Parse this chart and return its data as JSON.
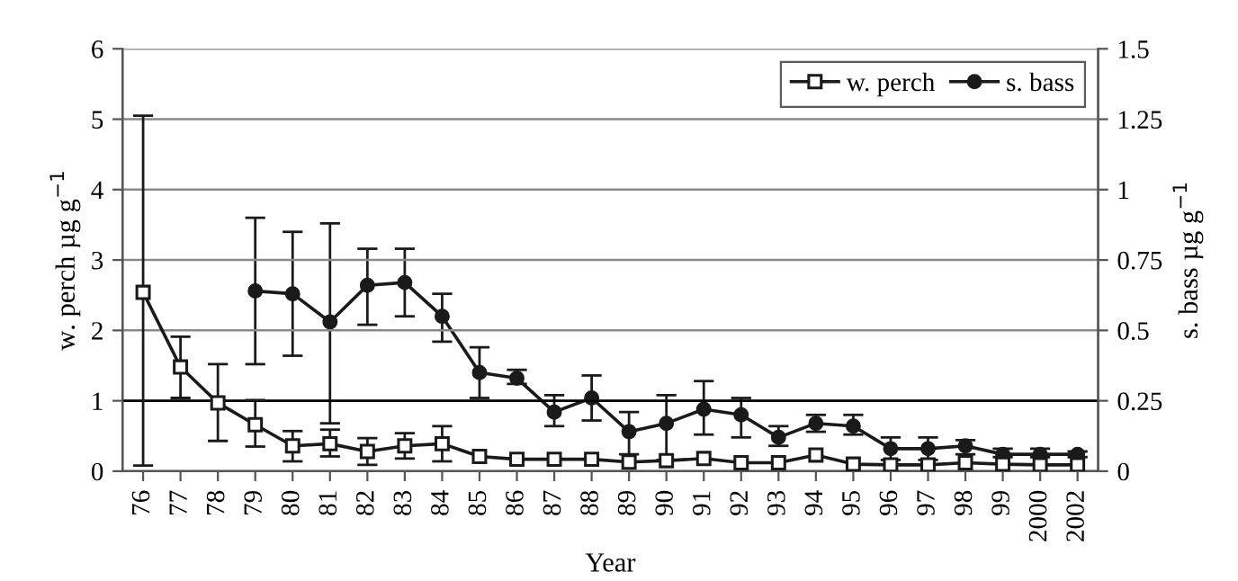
{
  "chart_data": {
    "type": "line",
    "xlabel": "Year",
    "ylabel": "w. perch µg g$^{−1}$",
    "y2label": "s. bass µg g$^{−1}$",
    "categories": [
      "76",
      "77",
      "78",
      "79",
      "80",
      "81",
      "82",
      "83",
      "84",
      "85",
      "86",
      "87",
      "88",
      "89",
      "90",
      "91",
      "92",
      "93",
      "94",
      "95",
      "96",
      "97",
      "98",
      "99",
      "2000",
      "2002"
    ],
    "series": [
      {
        "name": "w. perch",
        "color": "#1a1a1a",
        "marker": "square",
        "values": [
          2.54,
          1.48,
          0.97,
          0.66,
          0.36,
          0.39,
          0.28,
          0.36,
          0.39,
          0.21,
          0.17,
          0.17,
          0.17,
          0.13,
          0.15,
          0.18,
          0.12,
          0.12,
          0.23,
          0.1,
          0.09,
          0.09,
          0.12,
          0.1,
          0.09,
          0.09
        ],
        "errors": [
          [
            0.08,
            5.05
          ],
          [
            1.04,
            1.91
          ],
          [
            0.43,
            1.52
          ],
          [
            0.35,
            1.01
          ],
          [
            0.14,
            0.57
          ],
          [
            0.21,
            0.59
          ],
          [
            0.09,
            0.47
          ],
          [
            0.18,
            0.54
          ],
          [
            0.14,
            0.64
          ],
          null,
          null,
          null,
          null,
          null,
          null,
          null,
          null,
          null,
          null,
          null,
          null,
          null,
          null,
          null,
          null,
          null
        ]
      },
      {
        "name": "s. bass",
        "color": "#1a1a1a",
        "marker": "circle",
        "axis": "y2",
        "values": [
          null,
          null,
          null,
          0.64,
          0.63,
          0.53,
          0.66,
          0.67,
          0.55,
          0.35,
          0.33,
          0.21,
          0.26,
          0.14,
          0.17,
          0.22,
          0.2,
          0.12,
          0.17,
          0.16,
          0.08,
          0.08,
          0.09,
          0.06,
          0.06,
          0.06
        ],
        "errors": [
          null,
          null,
          null,
          [
            0.38,
            0.9
          ],
          [
            0.41,
            0.85
          ],
          [
            0.17,
            0.88
          ],
          [
            0.52,
            0.79
          ],
          [
            0.55,
            0.79
          ],
          [
            0.46,
            0.63
          ],
          [
            0.26,
            0.44
          ],
          [
            0.31,
            0.36
          ],
          [
            0.16,
            0.27
          ],
          [
            0.18,
            0.34
          ],
          [
            0.06,
            0.21
          ],
          [
            0.04,
            0.27
          ],
          [
            0.13,
            0.32
          ],
          [
            0.12,
            0.26
          ],
          [
            0.09,
            0.16
          ],
          [
            0.14,
            0.2
          ],
          [
            0.13,
            0.2
          ],
          [
            0.04,
            0.12
          ],
          [
            0.04,
            0.12
          ],
          [
            0.06,
            0.11
          ],
          [
            0.05,
            0.08
          ],
          [
            0.05,
            0.08
          ],
          [
            0.05,
            0.07
          ]
        ]
      }
    ],
    "ylim": [
      0,
      6
    ],
    "yticks": [
      0,
      1,
      2,
      3,
      4,
      5,
      6
    ],
    "y2lim": [
      0,
      1.5
    ],
    "y2ticks": [
      0,
      0.25,
      0.5,
      0.75,
      1,
      1.25,
      1.5
    ],
    "ref_lines": [
      {
        "axis": "y",
        "value": 1,
        "color": "#000000"
      }
    ],
    "grid": "y",
    "legend": "top right",
    "line_style": "solid"
  }
}
